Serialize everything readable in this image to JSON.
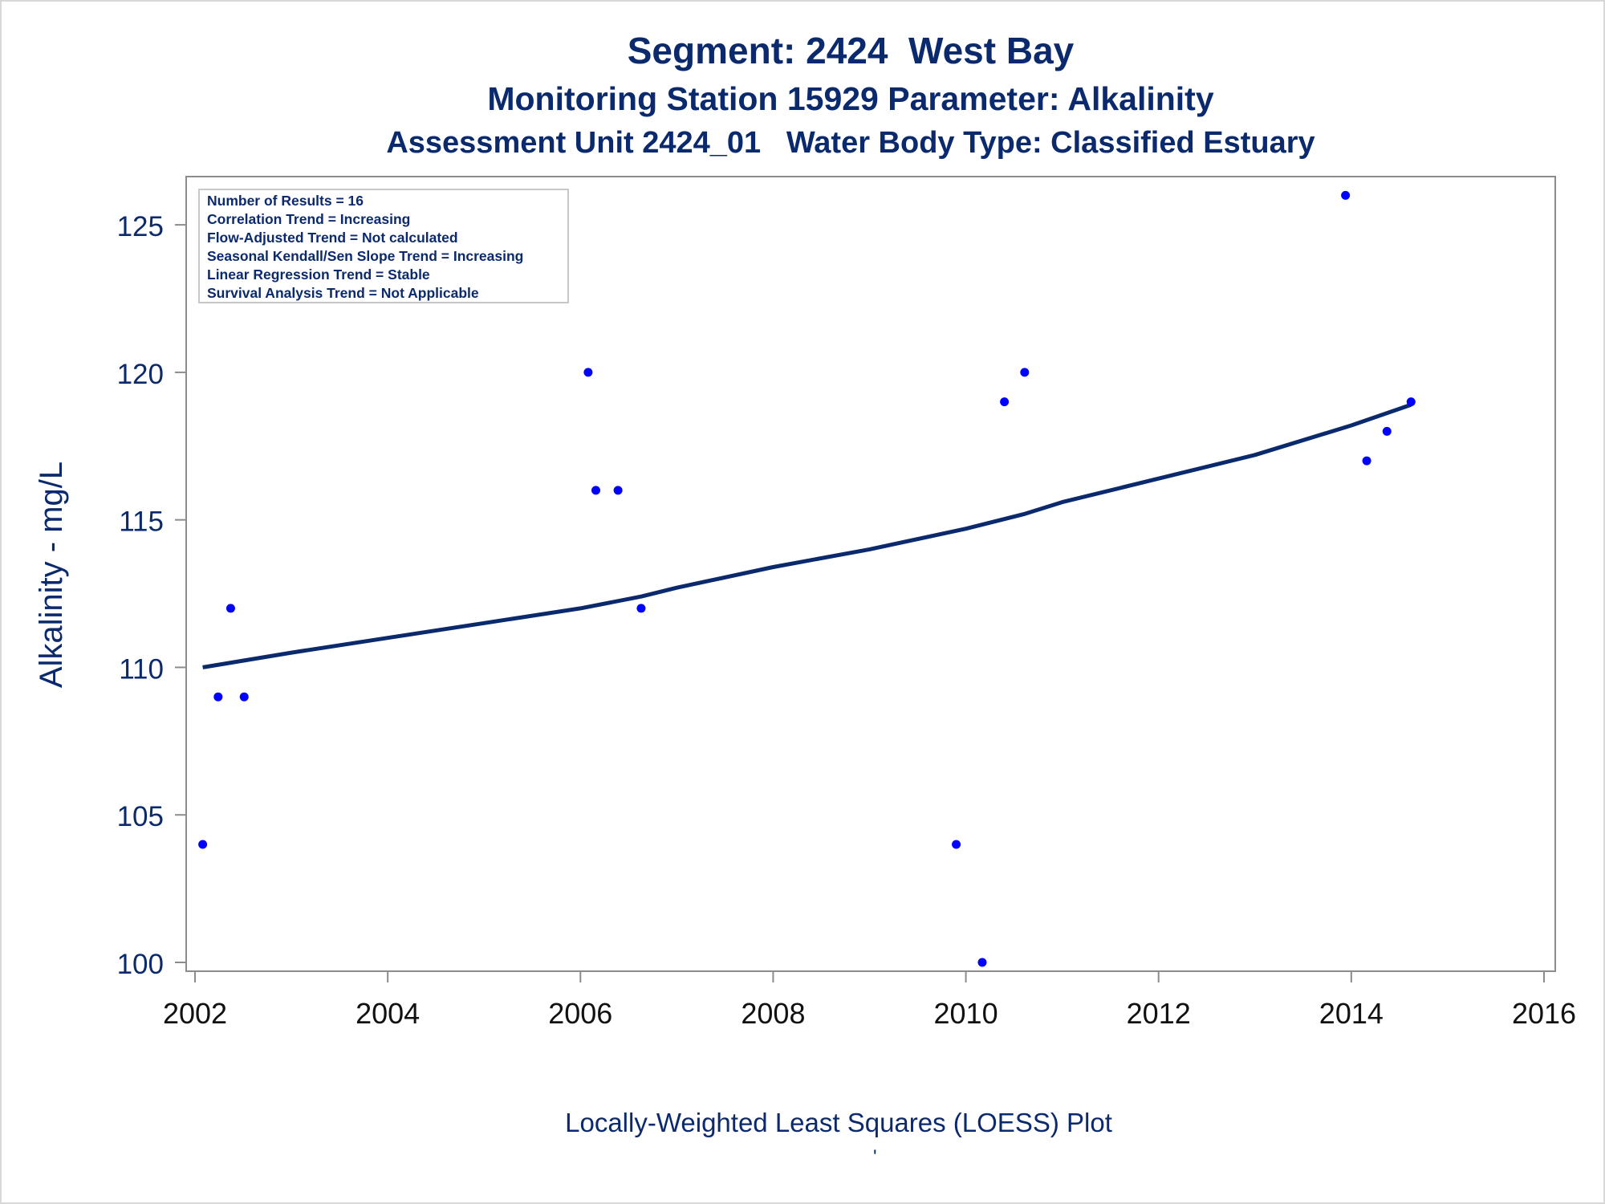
{
  "chart_data": {
    "type": "scatter",
    "title": "Segment: 2424  West Bay",
    "subtitle": "Monitoring Station 15929 Parameter: Alkalinity",
    "subtitle2": "Assessment Unit 2424_01   Water Body Type: Classified Estuary",
    "xlabel": "",
    "ylabel": "Alkalinity - mg/L",
    "footnote": "Locally-Weighted Least Squares (LOESS) Plot",
    "footnote_mark": "'",
    "xlim": [
      2002,
      2016
    ],
    "ylim": [
      100,
      126.2
    ],
    "xticks": [
      2002,
      2004,
      2006,
      2008,
      2010,
      2012,
      2014,
      2016
    ],
    "yticks": [
      100,
      105,
      110,
      115,
      120,
      125
    ],
    "grid": false,
    "stats_box": {
      "placement": "top-left",
      "lines": [
        "Number of Results = 16",
        "Correlation Trend = Increasing",
        "Flow-Adjusted Trend = Not calculated",
        "Seasonal Kendall/Sen Slope Trend = Increasing",
        "Linear Regression Trend = Stable",
        "Survival Analysis Trend = Not Applicable"
      ]
    },
    "points": [
      {
        "x": 2002.08,
        "y": 104
      },
      {
        "x": 2002.24,
        "y": 109
      },
      {
        "x": 2002.37,
        "y": 112
      },
      {
        "x": 2002.51,
        "y": 109
      },
      {
        "x": 2006.08,
        "y": 120
      },
      {
        "x": 2006.16,
        "y": 116
      },
      {
        "x": 2006.39,
        "y": 116
      },
      {
        "x": 2006.63,
        "y": 112
      },
      {
        "x": 2009.9,
        "y": 104
      },
      {
        "x": 2010.17,
        "y": 100
      },
      {
        "x": 2010.4,
        "y": 119
      },
      {
        "x": 2010.61,
        "y": 120
      },
      {
        "x": 2013.94,
        "y": 126
      },
      {
        "x": 2014.16,
        "y": 117
      },
      {
        "x": 2014.37,
        "y": 118
      },
      {
        "x": 2014.62,
        "y": 119
      }
    ],
    "loess_line": {
      "x": [
        2002.08,
        2003.0,
        2004.0,
        2005.0,
        2006.0,
        2006.63,
        2007.0,
        2008.0,
        2009.0,
        2010.0,
        2010.61,
        2011.0,
        2012.0,
        2013.0,
        2014.0,
        2014.62
      ],
      "y": [
        110.0,
        110.5,
        111.0,
        111.5,
        112.0,
        112.4,
        112.7,
        113.4,
        114.0,
        114.7,
        115.2,
        115.6,
        116.4,
        117.2,
        118.2,
        118.9
      ]
    },
    "colors": {
      "text": "#0b2a6e",
      "points": "#0000ff",
      "line": "#0b2a6e",
      "axes": "#8c8c8c"
    }
  }
}
